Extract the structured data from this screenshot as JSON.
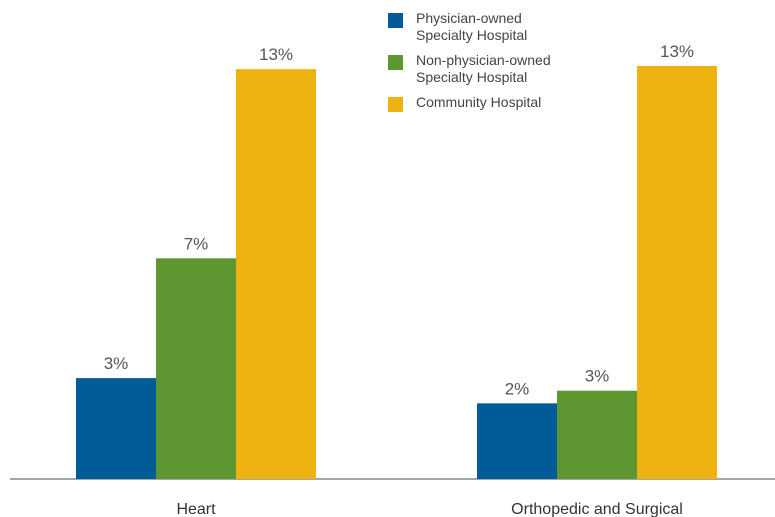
{
  "chart_data": {
    "type": "bar",
    "categories": [
      "Heart",
      "Orthopedic and Surgical"
    ],
    "series": [
      {
        "name": "Physician-owned Specialty Hospital",
        "color": "#005b96",
        "values": [
          3.2,
          2.4
        ],
        "value_labels": [
          "3%",
          "2%"
        ]
      },
      {
        "name": "Non-physician-owned Specialty Hospital",
        "color": "#5e9732",
        "values": [
          7.0,
          2.8
        ],
        "value_labels": [
          "7%",
          "3%"
        ]
      },
      {
        "name": "Community Hospital",
        "color": "#eeb211",
        "values": [
          13.0,
          13.1
        ],
        "value_labels": [
          "13%",
          "13%"
        ]
      }
    ],
    "legend": "top-right"
  }
}
